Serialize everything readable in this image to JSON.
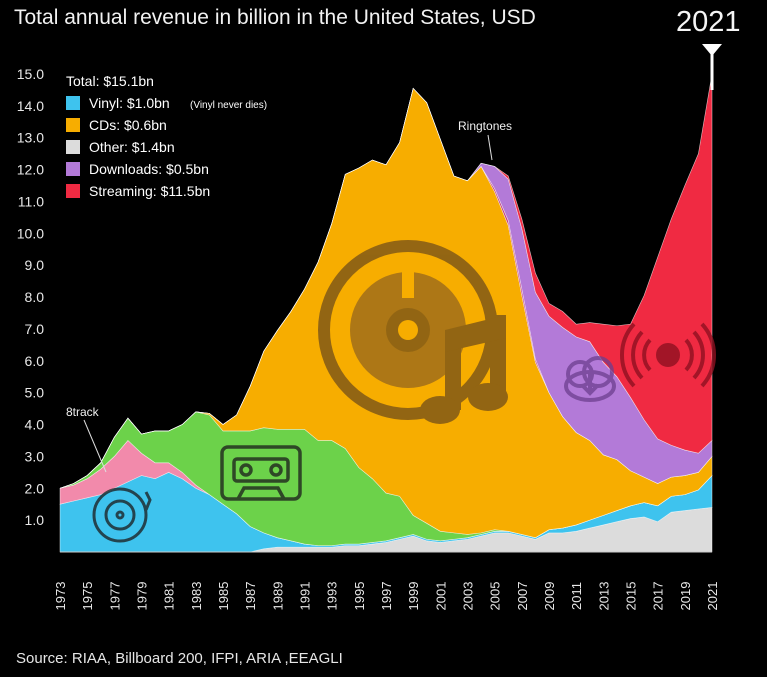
{
  "title": "Total annual revenue in billion in the United States, USD",
  "subtitle": "",
  "year_badge": "2021",
  "source": "Source: RIAA, Billboard 200, IFPI, ARIA ,EEAGLI",
  "colors": {
    "vinyl": "#3ec3ee",
    "cds": "#f7ad00",
    "other": "#dcdcdc",
    "downloads": "#b37ad8",
    "streaming": "#f02a42",
    "8track": "#f28aab",
    "cassette": "#6cd24a",
    "ringtones": "#c23b7e"
  },
  "legend": {
    "total": "Total: $15.1bn",
    "items": [
      {
        "key": "vinyl",
        "label": "Vinyl: $1.0bn",
        "note": "(Vinyl never dies)"
      },
      {
        "key": "cds",
        "label": "CDs: $0.6bn",
        "note": ""
      },
      {
        "key": "other",
        "label": "Other: $1.4bn",
        "note": ""
      },
      {
        "key": "downloads",
        "label": "Downloads: $0.5bn",
        "note": ""
      },
      {
        "key": "streaming",
        "label": "Streaming: $11.5bn",
        "note": ""
      }
    ]
  },
  "annotations": {
    "eight_track": "8track",
    "ringtones": "Ringtones"
  },
  "chart_data": {
    "type": "area",
    "stacked": true,
    "title": "Total annual revenue in billion in the United States, USD",
    "xlabel": "",
    "ylabel": "",
    "ylim": [
      0,
      15
    ],
    "yticks": [
      "1.0",
      "2.0",
      "3.0",
      "4.0",
      "5.0",
      "6.0",
      "7.0",
      "8.0",
      "9.0",
      "10.0",
      "11.0",
      "12.0",
      "13.0",
      "14.0",
      "15.0"
    ],
    "xticks": [
      "1973",
      "1975",
      "1977",
      "1979",
      "1981",
      "1983",
      "1985",
      "1987",
      "1989",
      "1991",
      "1993",
      "1995",
      "1997",
      "1999",
      "2001",
      "2003",
      "2005",
      "2007",
      "2009",
      "2011",
      "2013",
      "2015",
      "2017",
      "2019",
      "2021"
    ],
    "x": [
      1973,
      1974,
      1975,
      1976,
      1977,
      1978,
      1979,
      1980,
      1981,
      1982,
      1983,
      1984,
      1985,
      1986,
      1987,
      1988,
      1989,
      1990,
      1991,
      1992,
      1993,
      1994,
      1995,
      1996,
      1997,
      1998,
      1999,
      2000,
      2001,
      2002,
      2003,
      2004,
      2005,
      2006,
      2007,
      2008,
      2009,
      2010,
      2011,
      2012,
      2013,
      2014,
      2015,
      2016,
      2017,
      2018,
      2019,
      2020,
      2021
    ],
    "series": [
      {
        "name": "Other",
        "values": [
          0,
          0,
          0,
          0,
          0,
          0,
          0,
          0,
          0,
          0,
          0,
          0,
          0,
          0,
          0,
          0.1,
          0.15,
          0.15,
          0.15,
          0.15,
          0.15,
          0.2,
          0.2,
          0.25,
          0.3,
          0.4,
          0.5,
          0.35,
          0.3,
          0.35,
          0.4,
          0.5,
          0.6,
          0.6,
          0.5,
          0.4,
          0.6,
          0.6,
          0.65,
          0.75,
          0.85,
          0.95,
          1.05,
          1.1,
          0.95,
          1.25,
          1.3,
          1.35,
          1.4
        ]
      },
      {
        "name": "Vinyl",
        "values": [
          1.5,
          1.6,
          1.7,
          1.8,
          2.0,
          2.2,
          2.4,
          2.3,
          2.5,
          2.3,
          2.0,
          1.8,
          1.5,
          1.2,
          0.8,
          0.5,
          0.3,
          0.2,
          0.1,
          0.05,
          0.05,
          0.05,
          0.05,
          0.05,
          0.05,
          0.05,
          0.05,
          0.05,
          0.05,
          0.05,
          0.05,
          0.05,
          0.05,
          0.05,
          0.05,
          0.05,
          0.1,
          0.15,
          0.2,
          0.25,
          0.3,
          0.35,
          0.4,
          0.45,
          0.5,
          0.5,
          0.5,
          0.6,
          1.0
        ]
      },
      {
        "name": "8track",
        "values": [
          0.5,
          0.5,
          0.6,
          0.8,
          1.0,
          1.3,
          0.7,
          0.5,
          0.3,
          0.2,
          0.1,
          0,
          0,
          0,
          0,
          0,
          0,
          0,
          0,
          0,
          0,
          0,
          0,
          0,
          0,
          0,
          0,
          0,
          0,
          0,
          0,
          0,
          0,
          0,
          0,
          0,
          0,
          0,
          0,
          0,
          0,
          0,
          0,
          0,
          0,
          0,
          0,
          0,
          0
        ]
      },
      {
        "name": "Cassette",
        "values": [
          0,
          0.05,
          0.1,
          0.2,
          0.6,
          0.7,
          0.6,
          1.0,
          1.0,
          1.5,
          2.3,
          2.5,
          2.3,
          2.6,
          3.0,
          3.3,
          3.4,
          3.5,
          3.6,
          3.3,
          3.3,
          3.0,
          2.4,
          2.0,
          1.5,
          1.3,
          0.6,
          0.5,
          0.3,
          0.2,
          0.1,
          0.05,
          0.05,
          0,
          0,
          0,
          0,
          0,
          0,
          0,
          0,
          0,
          0,
          0,
          0,
          0,
          0,
          0,
          0
        ]
      },
      {
        "name": "CDs",
        "values": [
          0,
          0,
          0,
          0,
          0,
          0,
          0,
          0,
          0,
          0,
          0,
          0.05,
          0.2,
          0.5,
          1.4,
          2.4,
          3.1,
          3.7,
          4.4,
          5.6,
          6.8,
          8.6,
          9.4,
          10.0,
          10.3,
          11.1,
          13.4,
          13.2,
          12.3,
          11.2,
          11.1,
          11.5,
          10.6,
          9.6,
          7.5,
          5.5,
          4.3,
          3.5,
          2.9,
          2.5,
          1.9,
          1.6,
          1.1,
          0.8,
          0.7,
          0.6,
          0.6,
          0.55,
          0.6
        ]
      },
      {
        "name": "Ringtones",
        "values": [
          0,
          0,
          0,
          0,
          0,
          0,
          0,
          0,
          0,
          0,
          0,
          0,
          0,
          0,
          0,
          0,
          0,
          0,
          0,
          0,
          0,
          0,
          0,
          0,
          0,
          0,
          0,
          0,
          0,
          0,
          0,
          0,
          0.1,
          0.15,
          0.2,
          0.1,
          0,
          0,
          0,
          0,
          0,
          0,
          0,
          0,
          0,
          0,
          0,
          0,
          0
        ]
      },
      {
        "name": "Downloads",
        "values": [
          0,
          0,
          0,
          0,
          0,
          0,
          0,
          0,
          0,
          0,
          0,
          0,
          0,
          0,
          0,
          0,
          0,
          0,
          0,
          0,
          0,
          0,
          0,
          0,
          0,
          0,
          0,
          0,
          0,
          0,
          0,
          0.1,
          0.7,
          1.3,
          1.9,
          2.1,
          2.4,
          2.8,
          3.0,
          3.1,
          2.9,
          2.6,
          2.3,
          1.8,
          1.4,
          1.0,
          0.8,
          0.6,
          0.5
        ]
      },
      {
        "name": "Streaming",
        "values": [
          0,
          0,
          0,
          0,
          0,
          0,
          0,
          0,
          0,
          0,
          0,
          0,
          0,
          0,
          0,
          0,
          0,
          0,
          0,
          0,
          0,
          0,
          0,
          0,
          0,
          0,
          0,
          0,
          0,
          0,
          0,
          0,
          0,
          0.1,
          0.3,
          0.6,
          0.4,
          0.5,
          0.4,
          0.6,
          1.2,
          1.6,
          2.3,
          3.9,
          5.7,
          7.1,
          8.3,
          9.4,
          11.5
        ]
      }
    ]
  }
}
